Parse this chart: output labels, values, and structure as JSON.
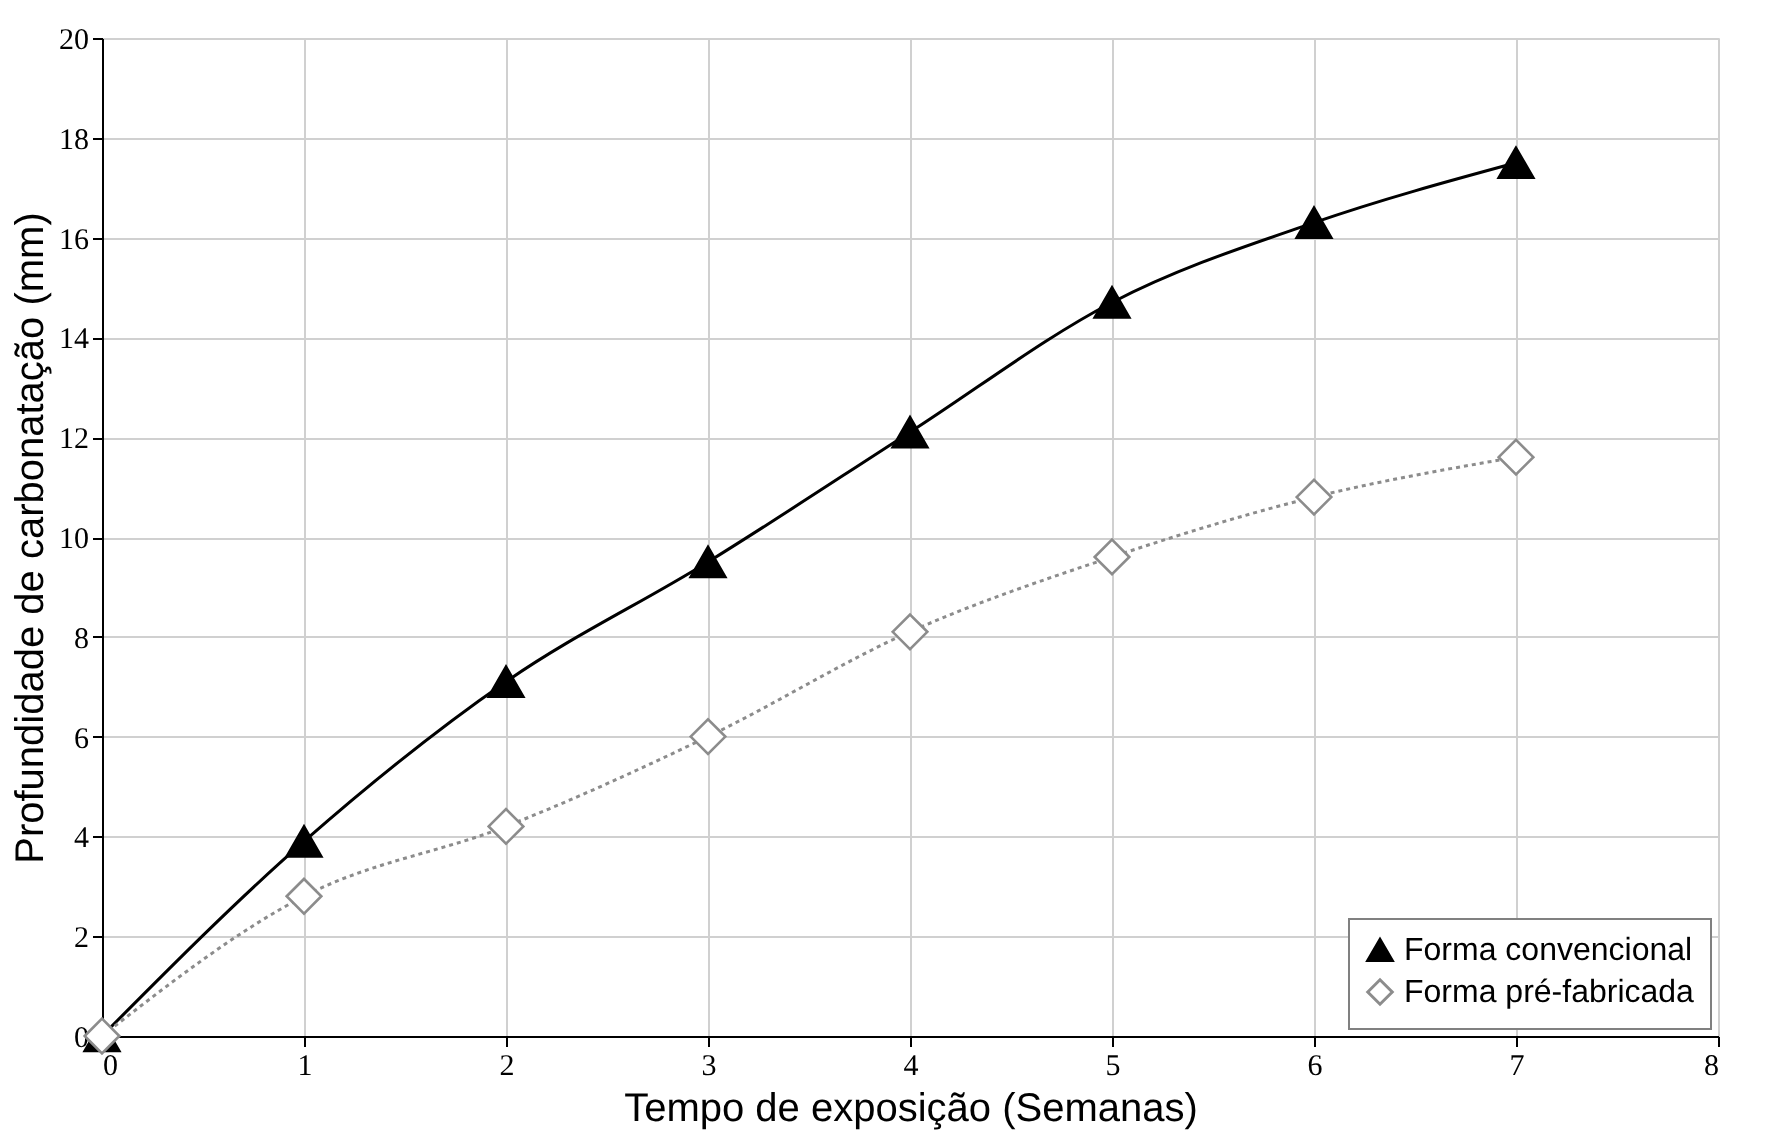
{
  "chart_data": {
    "type": "line",
    "xlabel": "Tempo de exposição (Semanas)",
    "ylabel": "Profundidade de carbonatação (mm)",
    "x": [
      0,
      1,
      2,
      3,
      4,
      5,
      6,
      7
    ],
    "series": [
      {
        "name": "Forma convencional",
        "color": "#000000",
        "values": [
          0,
          3.9,
          7.1,
          9.5,
          12.1,
          14.7,
          16.3,
          17.5
        ],
        "marker": "triangle",
        "line_style": "solid"
      },
      {
        "name": "Forma pré-fabricada",
        "color": "#8c8c8c",
        "values": [
          0,
          2.8,
          4.2,
          6.0,
          8.1,
          9.6,
          10.8,
          11.6
        ],
        "marker": "diamond",
        "line_style": "dotted"
      }
    ],
    "xlim": [
      0,
      8
    ],
    "xticks": [
      0,
      1,
      2,
      3,
      4,
      5,
      6,
      7,
      8
    ],
    "ylim": [
      0,
      20
    ],
    "yticks": [
      0,
      2,
      4,
      6,
      8,
      10,
      12,
      14,
      16,
      18,
      20
    ],
    "grid": true,
    "legend": "bottom right"
  }
}
